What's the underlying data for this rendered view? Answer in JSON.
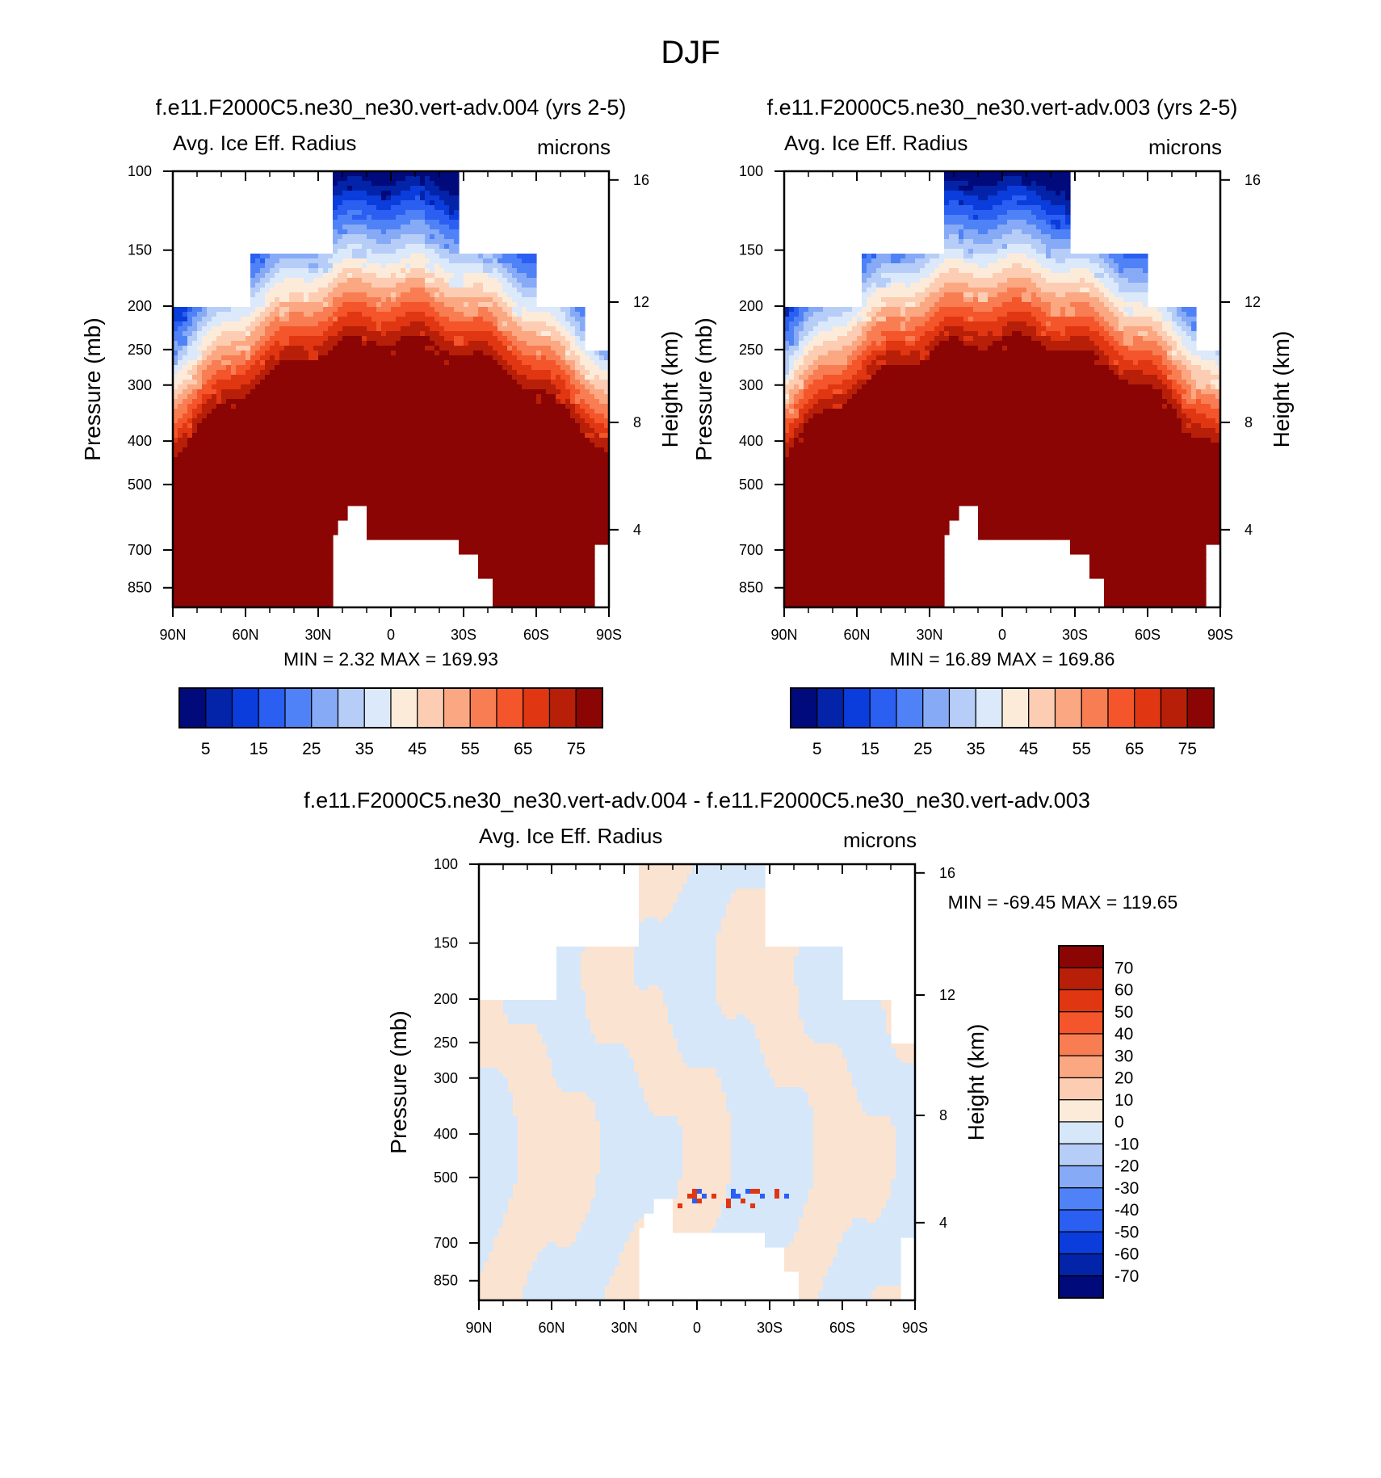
{
  "figure_title": "DJF",
  "chart_data": [
    {
      "id": "panel-top-left",
      "type": "heatmap",
      "title": "f.e11.F2000C5.ne30_ne30.vert-adv.004 (yrs 2-5)",
      "variable": "Avg. Ice Eff. Radius",
      "units": "microns",
      "ylabel": "Pressure (mb)",
      "y2label": "Height (km)",
      "x_ticks": [
        "90N",
        "60N",
        "30N",
        "0",
        "30S",
        "60S",
        "90S"
      ],
      "y_ticks": [
        "100",
        "150",
        "200",
        "250",
        "300",
        "400",
        "500",
        "700",
        "850"
      ],
      "y2_ticks": [
        "16",
        "12",
        "8",
        "4"
      ],
      "min": 2.32,
      "max": 169.93,
      "stats_text": "MIN =   2.32  MAX = 169.93"
    },
    {
      "id": "panel-top-right",
      "type": "heatmap",
      "title": "f.e11.F2000C5.ne30_ne30.vert-adv.003 (yrs 2-5)",
      "variable": "Avg. Ice Eff. Radius",
      "units": "microns",
      "ylabel": "Pressure (mb)",
      "y2label": "Height (km)",
      "x_ticks": [
        "90N",
        "60N",
        "30N",
        "0",
        "30S",
        "60S",
        "90S"
      ],
      "y_ticks": [
        "100",
        "150",
        "200",
        "250",
        "300",
        "400",
        "500",
        "700",
        "850"
      ],
      "y2_ticks": [
        "16",
        "12",
        "8",
        "4"
      ],
      "min": 16.89,
      "max": 169.86,
      "stats_text": "MIN =  16.89  MAX = 169.86"
    },
    {
      "id": "panel-diff",
      "type": "heatmap",
      "title": "f.e11.F2000C5.ne30_ne30.vert-adv.004 - f.e11.F2000C5.ne30_ne30.vert-adv.003",
      "variable": "Avg. Ice Eff. Radius",
      "units": "microns",
      "ylabel": "Pressure (mb)",
      "y2label": "Height (km)",
      "x_ticks": [
        "90N",
        "60N",
        "30N",
        "0",
        "30S",
        "60S",
        "90S"
      ],
      "y_ticks": [
        "100",
        "150",
        "200",
        "250",
        "300",
        "400",
        "500",
        "700",
        "850"
      ],
      "y2_ticks": [
        "16",
        "12",
        "8",
        "4"
      ],
      "min": -69.45,
      "max": 119.65,
      "stats_text": "MIN = -69.45  MAX = 119.65"
    }
  ],
  "colorbar_main": {
    "labels": [
      "5",
      "15",
      "25",
      "35",
      "45",
      "55",
      "65",
      "75"
    ],
    "colors": [
      "#000a7a",
      "#0323a8",
      "#0a3ddc",
      "#2a5ff2",
      "#4f82f6",
      "#86aaf6",
      "#b6cdf8",
      "#dbe9fb",
      "#fdebd9",
      "#fccdb2",
      "#fba782",
      "#f97d52",
      "#f4552a",
      "#e03612",
      "#b71f08",
      "#8a0504"
    ]
  },
  "colorbar_diff": {
    "labels": [
      "70",
      "60",
      "50",
      "40",
      "30",
      "20",
      "10",
      "0",
      "-10",
      "-20",
      "-30",
      "-40",
      "-50",
      "-60",
      "-70"
    ],
    "colors": [
      "#8a0504",
      "#b71f08",
      "#e03612",
      "#f4552a",
      "#f97d52",
      "#fba782",
      "#fccdb2",
      "#fdebd9",
      "#d6e7fa",
      "#b6cdf8",
      "#86aaf6",
      "#4f82f6",
      "#2a5ff2",
      "#0a3ddc",
      "#0323a8",
      "#000a7a"
    ]
  }
}
